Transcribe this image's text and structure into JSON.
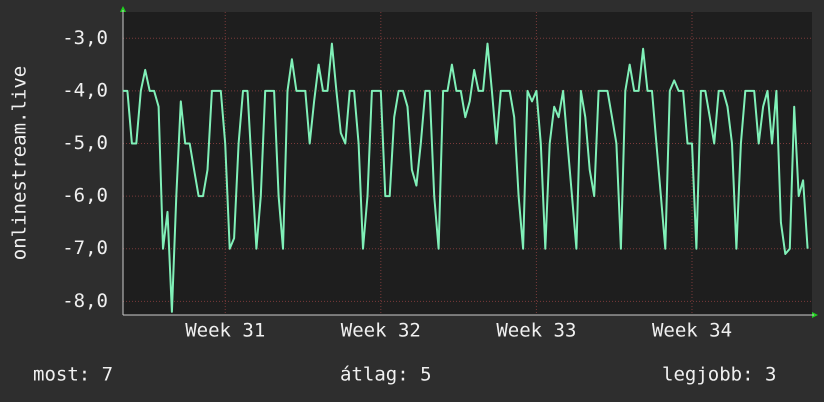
{
  "chart_data": {
    "type": "line",
    "y_label": "onlinestream.live",
    "series": [
      {
        "color": "#80f0b8",
        "values": [
          -4,
          -4,
          -5,
          -5,
          -4,
          -3.6,
          -4,
          -4,
          -4.3,
          -7,
          -6.3,
          -8.2,
          -6,
          -4.2,
          -5,
          -5,
          -5.5,
          -6,
          -6,
          -5.5,
          -4,
          -4,
          -4,
          -5,
          -7,
          -6.8,
          -5,
          -4,
          -4,
          -5.5,
          -7,
          -6,
          -4,
          -4,
          -4,
          -6,
          -7,
          -4,
          -3.4,
          -4,
          -4,
          -4,
          -5,
          -4.2,
          -3.5,
          -4,
          -4,
          -3.1,
          -4,
          -4.8,
          -5,
          -4,
          -4,
          -5,
          -7,
          -6,
          -4,
          -4,
          -4,
          -6,
          -6,
          -4.5,
          -4,
          -4,
          -4.3,
          -5.5,
          -5.8,
          -5,
          -4,
          -4,
          -6,
          -7,
          -4,
          -4,
          -3.5,
          -4,
          -4,
          -4.5,
          -4.2,
          -3.6,
          -4,
          -4,
          -3.1,
          -4,
          -5,
          -4,
          -4,
          -4,
          -4.5,
          -6,
          -7,
          -4,
          -4.2,
          -4,
          -5,
          -7,
          -5,
          -4.3,
          -4.5,
          -4,
          -5,
          -6,
          -7,
          -4,
          -4.5,
          -5.5,
          -6,
          -4,
          -4,
          -4,
          -4.5,
          -5,
          -7,
          -4,
          -3.5,
          -4,
          -4,
          -3.2,
          -4,
          -4,
          -5,
          -6,
          -7,
          -4,
          -3.8,
          -4,
          -4,
          -5,
          -5,
          -7,
          -4,
          -4,
          -4.5,
          -5,
          -4,
          -4,
          -4.3,
          -5,
          -7,
          -5,
          -4,
          -4,
          -4,
          -5,
          -4.3,
          -4,
          -5,
          -4,
          -6.5,
          -7.1,
          -7,
          -4.3,
          -6,
          -5.7,
          -7
        ]
      }
    ],
    "xlim": [
      0,
      155
    ],
    "xticks": [
      {
        "value": 23,
        "label": "Week 31"
      },
      {
        "value": 58,
        "label": "Week 32"
      },
      {
        "value": 93,
        "label": "Week 33"
      },
      {
        "value": 128,
        "label": "Week 34"
      }
    ],
    "ylim": [
      -8.26,
      -2.5
    ],
    "yticks": [
      {
        "value": -8,
        "label": "-8,0"
      },
      {
        "value": -7,
        "label": "-7,0"
      },
      {
        "value": -6,
        "label": "-6,0"
      },
      {
        "value": -5,
        "label": "-5,0"
      },
      {
        "value": -4,
        "label": "-4,0"
      },
      {
        "value": -3,
        "label": "-3,0"
      }
    ],
    "grid": true,
    "footer": [
      "most: 7",
      "átlag: 5",
      "legjobb: 3"
    ]
  }
}
